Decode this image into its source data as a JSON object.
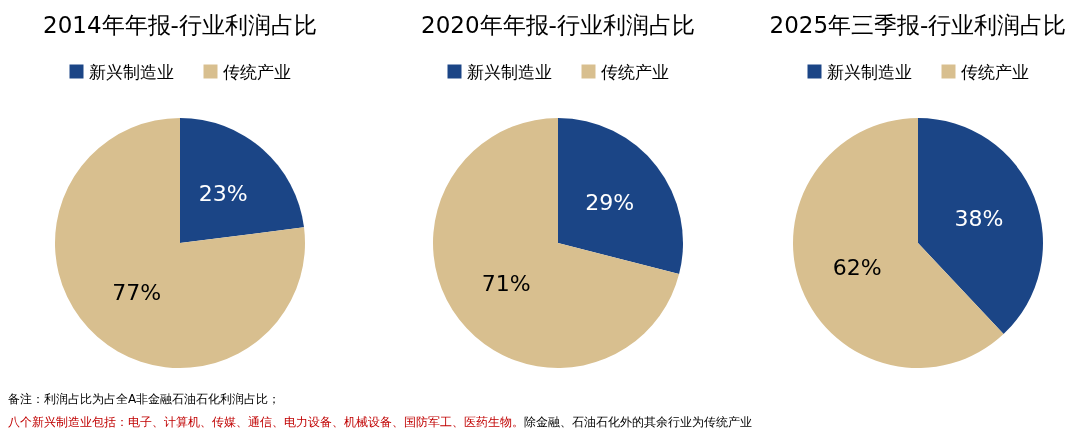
{
  "chart_data": [
    {
      "type": "pie",
      "title": "2014年年报-行业利润占比",
      "categories": [
        "新兴制造业",
        "传统产业"
      ],
      "values": [
        23,
        77
      ],
      "value_labels": [
        "23%",
        "77%"
      ],
      "colors": [
        "#1b4586",
        "#d8bf8f"
      ],
      "legend": "top",
      "annotations": [
        "备注：利润占比为占全A非金融石油石化利润占比；",
        "八个新兴制造业包括：电子、计算机、传媒、通信、电力设备、机械设备、国防军工、医药生物。",
        "除金融、石油石化外的其余行业为传统产业"
      ]
    },
    {
      "type": "pie",
      "title": "2020年年报-行业利润占比",
      "categories": [
        "新兴制造业",
        "传统产业"
      ],
      "values": [
        29,
        71
      ],
      "value_labels": [
        "29%",
        "71%"
      ],
      "colors": [
        "#1b4586",
        "#d8bf8f"
      ],
      "legend": "top"
    },
    {
      "type": "pie",
      "title": "2025年三季报-行业利润占比",
      "categories": [
        "新兴制造业",
        "传统产业"
      ],
      "values": [
        38,
        62
      ],
      "value_labels": [
        "38%",
        "62%"
      ],
      "colors": [
        "#1b4586",
        "#d8bf8f"
      ],
      "legend": "top"
    }
  ]
}
